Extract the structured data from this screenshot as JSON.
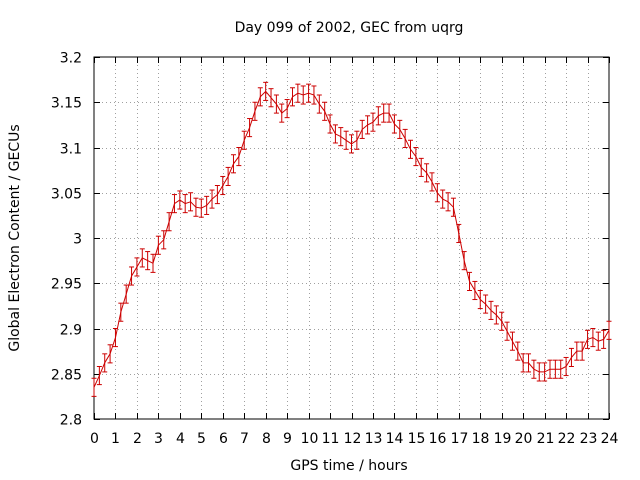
{
  "chart_data": {
    "type": "line",
    "title": "Day 099 of 2002, GEC from uqrg",
    "xlabel": "GPS time / hours",
    "ylabel": "Global Electron Content / GECUs",
    "xlim": [
      0,
      24
    ],
    "ylim": [
      2.8,
      3.2
    ],
    "grid": true,
    "legend": "none",
    "series_color": "#cc0000",
    "x_ticks": [
      0,
      1,
      2,
      3,
      4,
      5,
      6,
      7,
      8,
      9,
      10,
      11,
      12,
      13,
      14,
      15,
      16,
      17,
      18,
      19,
      20,
      21,
      22,
      23,
      24
    ],
    "x_tick_labels": [
      "0",
      "1",
      "2",
      "3",
      "4",
      "5",
      "6",
      "7",
      "8",
      "9",
      "10",
      "11",
      "12",
      "13",
      "14",
      "15",
      "16",
      "17",
      "18",
      "19",
      "20",
      "21",
      "22",
      "23",
      "24"
    ],
    "y_ticks": [
      2.8,
      2.85,
      2.9,
      2.95,
      3,
      3.05,
      3.1,
      3.15,
      3.2
    ],
    "y_tick_labels": [
      "2.8",
      "2.85",
      "2.9",
      "2.95",
      "3",
      "3.05",
      "3.1",
      "3.15",
      "3.2"
    ],
    "error": 0.01,
    "series": [
      {
        "name": "GEC",
        "x": [
          0,
          0.25,
          0.5,
          0.75,
          1,
          1.25,
          1.5,
          1.75,
          2,
          2.25,
          2.5,
          2.75,
          3,
          3.25,
          3.5,
          3.75,
          4,
          4.25,
          4.5,
          4.75,
          5,
          5.25,
          5.5,
          5.75,
          6,
          6.25,
          6.5,
          6.75,
          7,
          7.25,
          7.5,
          7.75,
          8,
          8.25,
          8.5,
          8.75,
          9,
          9.25,
          9.5,
          9.75,
          10,
          10.25,
          10.5,
          10.75,
          11,
          11.25,
          11.5,
          11.75,
          12,
          12.25,
          12.5,
          12.75,
          13,
          13.25,
          13.5,
          13.75,
          14,
          14.25,
          14.5,
          14.75,
          15,
          15.25,
          15.5,
          15.75,
          16,
          16.25,
          16.5,
          16.75,
          17,
          17.25,
          17.5,
          17.75,
          18,
          18.25,
          18.5,
          18.75,
          19,
          19.25,
          19.5,
          19.75,
          20,
          20.25,
          20.5,
          20.75,
          21,
          21.25,
          21.5,
          21.75,
          22,
          22.25,
          22.5,
          22.75,
          23,
          23.25,
          23.5,
          23.75,
          24
        ],
        "values": [
          2.835,
          2.848,
          2.862,
          2.872,
          2.89,
          2.918,
          2.938,
          2.958,
          2.968,
          2.978,
          2.975,
          2.972,
          2.992,
          2.998,
          3.018,
          3.038,
          3.042,
          3.038,
          3.04,
          3.034,
          3.033,
          3.036,
          3.043,
          3.048,
          3.058,
          3.068,
          3.082,
          3.09,
          3.108,
          3.122,
          3.14,
          3.156,
          3.162,
          3.155,
          3.148,
          3.138,
          3.143,
          3.156,
          3.16,
          3.158,
          3.16,
          3.158,
          3.148,
          3.14,
          3.126,
          3.115,
          3.112,
          3.108,
          3.104,
          3.108,
          3.12,
          3.125,
          3.128,
          3.135,
          3.138,
          3.138,
          3.126,
          3.12,
          3.11,
          3.098,
          3.09,
          3.078,
          3.072,
          3.062,
          3.05,
          3.043,
          3.04,
          3.034,
          3.005,
          2.975,
          2.952,
          2.942,
          2.932,
          2.927,
          2.92,
          2.915,
          2.908,
          2.897,
          2.886,
          2.875,
          2.862,
          2.862,
          2.855,
          2.852,
          2.852,
          2.855,
          2.855,
          2.855,
          2.858,
          2.868,
          2.875,
          2.875,
          2.888,
          2.89,
          2.886,
          2.888,
          2.898
        ]
      }
    ]
  }
}
